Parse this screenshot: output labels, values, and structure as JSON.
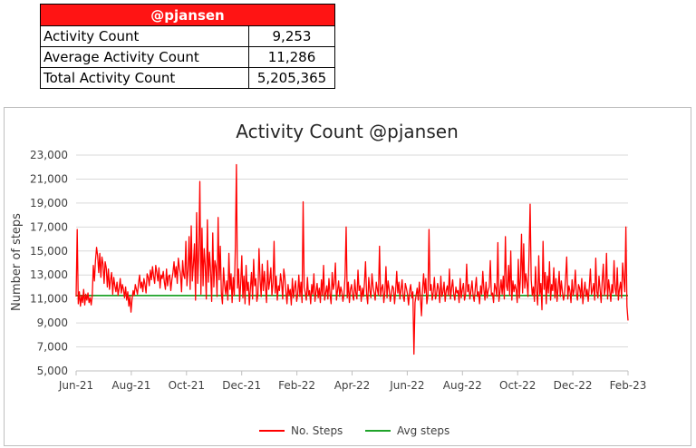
{
  "summary": {
    "header": "@pjansen",
    "rows": [
      {
        "label": "Activity Count",
        "value": "9,253"
      },
      {
        "label": "Average Activity Count",
        "value": "11,286"
      },
      {
        "label": "Total Activity Count",
        "value": "5,205,365"
      }
    ]
  },
  "colors": {
    "header_bg": "#ff1414",
    "steps_line": "#ff0000",
    "avg_line": "#1fa32a",
    "grid": "#d9d9d9"
  },
  "chart_data": {
    "type": "line",
    "title": "Activity Count @pjansen",
    "xlabel": "",
    "ylabel": "Number of steps",
    "ylim": [
      5000,
      23000
    ],
    "yticks": [
      "5,000",
      "7,000",
      "9,000",
      "11,000",
      "13,000",
      "15,000",
      "17,000",
      "19,000",
      "21,000",
      "23,000"
    ],
    "ytick_values": [
      5000,
      7000,
      9000,
      11000,
      13000,
      15000,
      17000,
      19000,
      21000,
      23000
    ],
    "xticks": [
      "Jun-21",
      "Aug-21",
      "Oct-21",
      "Dec-21",
      "Feb-22",
      "Apr-22",
      "Jun-22",
      "Aug-22",
      "Oct-22",
      "Dec-22",
      "Feb-23"
    ],
    "grid": true,
    "legend_position": "bottom",
    "series": [
      {
        "name": "No. Steps",
        "color": "#ff0000",
        "note": "daily values (approximate, read from chart), one per day from Jun-21 to Feb-23",
        "values": [
          11200,
          16800,
          10600,
          11600,
          10400,
          11300,
          10700,
          11800,
          10500,
          11400,
          10900,
          11500,
          10700,
          11100,
          10500,
          11300,
          13800,
          12500,
          14200,
          15300,
          14600,
          13200,
          14800,
          12800,
          14500,
          13900,
          12300,
          14100,
          13600,
          12000,
          13500,
          11800,
          12600,
          13200,
          11400,
          12800,
          12100,
          11600,
          12400,
          11300,
          11900,
          12700,
          11500,
          12200,
          11800,
          11100,
          12000,
          10900,
          11600,
          10400,
          11200,
          9900,
          11000,
          11700,
          11300,
          12200,
          11800,
          11400,
          12300,
          13000,
          11900,
          12400,
          11600,
          12700,
          12200,
          11500,
          13100,
          12800,
          12100,
          13400,
          12600,
          13700,
          12900,
          12300,
          13800,
          13200,
          12500,
          13600,
          11900,
          13000,
          12700,
          13300,
          12400,
          11800,
          13500,
          12100,
          12900,
          13000,
          11700,
          12600,
          13200,
          14100,
          12800,
          13700,
          12300,
          14400,
          13600,
          13100,
          11600,
          14200,
          13000,
          12700,
          15800,
          12100,
          13400,
          16200,
          11800,
          17100,
          12500,
          13900,
          15600,
          10900,
          18200,
          12300,
          14700,
          20800,
          11400,
          16900,
          12100,
          15200,
          13800,
          11000,
          17600,
          12400,
          14900,
          13300,
          10800,
          16500,
          12000,
          14200,
          13700,
          11200,
          17800,
          12600,
          15400,
          11500,
          10600,
          13600,
          12200,
          11400,
          12500,
          10900,
          14800,
          11800,
          13100,
          10700,
          12800,
          11300,
          15300,
          22200,
          11900,
          13500,
          10800,
          12300,
          14600,
          11100,
          12900,
          10600,
          13800,
          11700,
          12400,
          10500,
          11900,
          13200,
          11000,
          14300,
          12100,
          12700,
          10800,
          11400,
          15200,
          12600,
          11200,
          13900,
          11700,
          13300,
          12000,
          10700,
          14200,
          11800,
          12500,
          13600,
          11300,
          12300,
          15800,
          11500,
          12900,
          10900,
          12100,
          11700,
          13100,
          12400,
          11000,
          13500,
          12800,
          11600,
          10600,
          12200,
          11300,
          11800,
          10500,
          12700,
          11100,
          11900,
          12500,
          10800,
          11400,
          13000,
          11200,
          12400,
          10700,
          19100,
          12000,
          11500,
          10900,
          12800,
          11300,
          11700,
          10600,
          12200,
          11400,
          13100,
          10800,
          11600,
          12300,
          11100,
          11900,
          10700,
          12600,
          11300,
          13800,
          10900,
          11500,
          12100,
          11000,
          12700,
          11400,
          10600,
          13200,
          11800,
          12300,
          14000,
          10900,
          11700,
          12500,
          11200,
          12000,
          11600,
          10800,
          11400,
          12900,
          17000,
          11100,
          12400,
          10700,
          11800,
          12200,
          11300,
          10900,
          12600,
          11500,
          11000,
          13400,
          11700,
          12100,
          10800,
          11900,
          11200,
          12300,
          14100,
          11400,
          10600,
          12800,
          11700,
          11100,
          13100,
          12000,
          11500,
          10900,
          12400,
          11800,
          11300,
          15400,
          11200,
          11900,
          12200,
          10700,
          11600,
          13700,
          11100,
          12500,
          11800,
          10800,
          11400,
          12100,
          11900,
          10600,
          11700,
          13300,
          11500,
          12400,
          11000,
          11800,
          12600,
          11200,
          10800,
          12300,
          11900,
          11400,
          10500,
          11700,
          12200,
          11100,
          11600,
          6400,
          10700,
          11300,
          11900,
          10900,
          12400,
          11200,
          9600,
          11800,
          13100,
          11500,
          12700,
          10600,
          11300,
          16800,
          11700,
          12200,
          10900,
          11600,
          12800,
          11000,
          11400,
          12300,
          11800,
          10700,
          12900,
          11200,
          11600,
          12400,
          10800,
          11700,
          12100,
          11300,
          13500,
          11000,
          11900,
          12600,
          11400,
          10900,
          12000,
          11500,
          11700,
          10700,
          12700,
          11100,
          11800,
          12300,
          10900,
          11400,
          13900,
          11600,
          12200,
          11000,
          11700,
          12500,
          11300,
          10800,
          11900,
          12800,
          11200,
          11600,
          10600,
          12100,
          11400,
          13300,
          11800,
          10900,
          12400,
          11100,
          11700,
          12000,
          14200,
          11300,
          11500,
          10700,
          12300,
          11900,
          11200,
          15700,
          10800,
          11600,
          12600,
          11400,
          12900,
          11000,
          16200,
          12100,
          11700,
          13800,
          11300,
          15000,
          10900,
          12500,
          11600,
          12200,
          11800,
          10700,
          14300,
          11100,
          12800,
          16400,
          11500,
          15600,
          11900,
          13100,
          12400,
          11200,
          14700,
          18900,
          12600,
          11300,
          12000,
          10800,
          13700,
          11700,
          10500,
          14600,
          11400,
          12300,
          10100,
          15800,
          11800,
          13200,
          10600,
          12900,
          11500,
          14100,
          10900,
          12200,
          11700,
          13600,
          11100,
          12700,
          10800,
          11900,
          13300,
          11200,
          12500,
          11600,
          10900,
          11400,
          12800,
          14500,
          11000,
          12100,
          11700,
          10700,
          12600,
          11300,
          11800,
          13400,
          11500,
          10900,
          12200,
          11900,
          11100,
          12700,
          10600,
          11600,
          12400,
          11200,
          11800,
          10800,
          12000,
          13500,
          11400,
          11700,
          12300,
          10900,
          14400,
          11600,
          11100,
          12900,
          11800,
          10700,
          12500,
          13900,
          11300,
          11900,
          14800,
          11000,
          12600,
          11700,
          10800,
          12200,
          11500,
          14200,
          11900,
          11300,
          13600,
          10900,
          11800,
          12400,
          11100,
          14000,
          12700,
          11600,
          17000,
          10400,
          9200
        ]
      },
      {
        "name": "Avg steps",
        "color": "#1fa32a",
        "value": 11286
      }
    ]
  }
}
